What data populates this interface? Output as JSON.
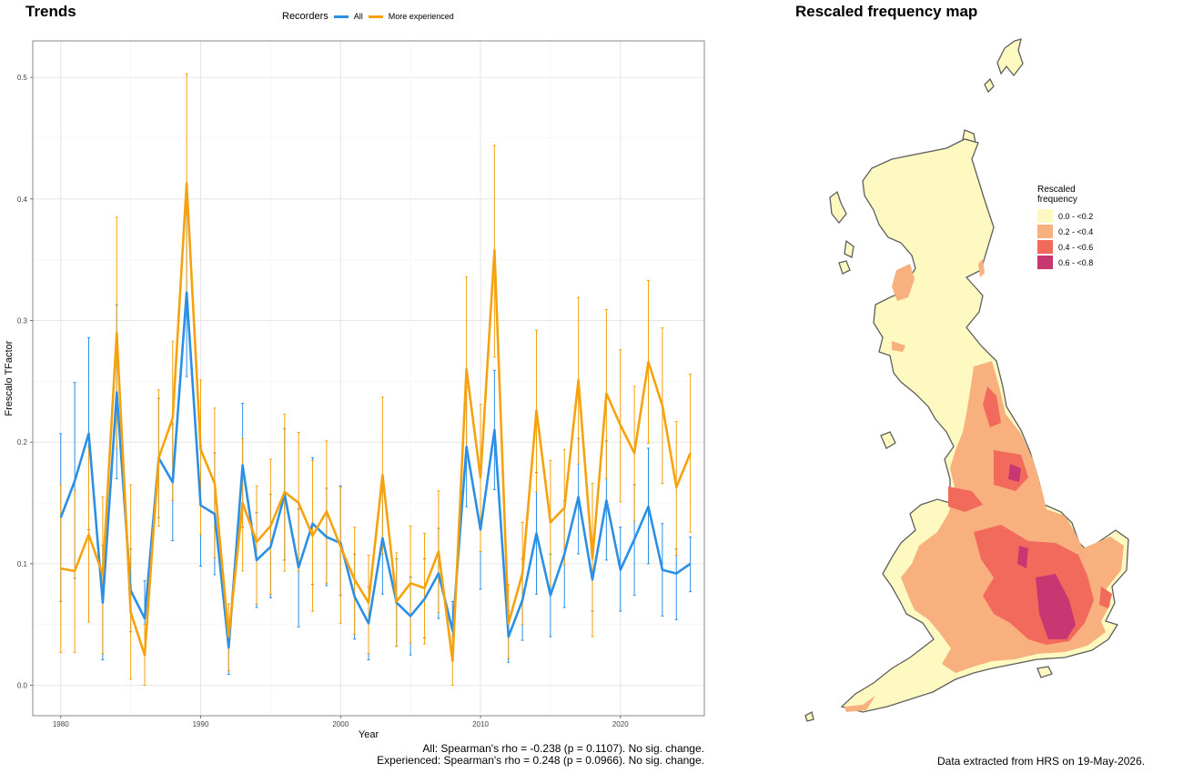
{
  "titles": {
    "trends": "Trends",
    "map": "Rescaled frequency map"
  },
  "legend": {
    "title": "Recorders",
    "items": [
      {
        "label": "All",
        "color": "#2b8fe6"
      },
      {
        "label": "More experienced",
        "color": "#f6a20e"
      }
    ]
  },
  "chart_data": {
    "type": "line",
    "xlabel": "Year",
    "ylabel": "Frescalo TFactor",
    "xlim": [
      1978,
      2026
    ],
    "ylim": [
      -0.025,
      0.53
    ],
    "x_ticks": [
      1980,
      1990,
      2000,
      2010,
      2020
    ],
    "y_ticks": [
      0.0,
      0.1,
      0.2,
      0.3,
      0.4,
      0.5
    ],
    "y_tick_labels": [
      "0.0",
      "0.1",
      "0.2",
      "0.3",
      "0.4",
      "0.5"
    ],
    "grid": true,
    "legend_position": "top",
    "x": [
      1980,
      1981,
      1982,
      1983,
      1984,
      1985,
      1986,
      1987,
      1988,
      1989,
      1990,
      1991,
      1992,
      1993,
      1994,
      1995,
      1996,
      1997,
      1998,
      1999,
      2000,
      2001,
      2002,
      2003,
      2004,
      2005,
      2006,
      2007,
      2008,
      2009,
      2010,
      2011,
      2012,
      2013,
      2014,
      2015,
      2016,
      2017,
      2018,
      2019,
      2020,
      2021,
      2022,
      2023,
      2024,
      2025
    ],
    "series": [
      {
        "name": "All",
        "color": "#2b8fe6",
        "values": [
          0.138,
          0.168,
          0.207,
          0.068,
          0.241,
          0.078,
          0.055,
          0.187,
          0.167,
          0.323,
          0.148,
          0.141,
          0.031,
          0.181,
          0.103,
          0.114,
          0.157,
          0.097,
          0.133,
          0.122,
          0.117,
          0.073,
          0.051,
          0.121,
          0.068,
          0.057,
          0.071,
          0.092,
          0.045,
          0.196,
          0.128,
          0.21,
          0.04,
          0.07,
          0.125,
          0.074,
          0.108,
          0.155,
          0.087,
          0.152,
          0.095,
          0.12,
          0.147,
          0.095,
          0.092,
          0.1
        ],
        "lower": [
          0.069,
          0.088,
          0.128,
          0.021,
          0.17,
          0.044,
          0.025,
          0.138,
          0.119,
          0.254,
          0.098,
          0.091,
          0.009,
          0.13,
          0.064,
          0.072,
          0.103,
          0.048,
          0.083,
          0.082,
          0.074,
          0.038,
          0.021,
          0.075,
          0.032,
          0.025,
          0.039,
          0.055,
          0.021,
          0.147,
          0.079,
          0.161,
          0.019,
          0.037,
          0.075,
          0.04,
          0.064,
          0.108,
          0.061,
          0.103,
          0.061,
          0.074,
          0.1,
          0.057,
          0.054,
          0.077
        ],
        "upper": [
          0.207,
          0.249,
          0.286,
          0.115,
          0.313,
          0.112,
          0.086,
          0.236,
          0.215,
          0.393,
          0.197,
          0.191,
          0.053,
          0.232,
          0.142,
          0.157,
          0.211,
          0.145,
          0.187,
          0.162,
          0.164,
          0.108,
          0.081,
          0.167,
          0.104,
          0.089,
          0.104,
          0.129,
          0.069,
          0.245,
          0.177,
          0.259,
          0.061,
          0.104,
          0.175,
          0.108,
          0.152,
          0.203,
          0.114,
          0.201,
          0.13,
          0.165,
          0.195,
          0.133,
          0.112,
          0.122
        ]
      },
      {
        "name": "More experienced",
        "color": "#f6a20e",
        "values": [
          0.096,
          0.094,
          0.124,
          0.091,
          0.29,
          0.06,
          0.025,
          0.187,
          0.22,
          0.413,
          0.194,
          0.166,
          0.04,
          0.15,
          0.118,
          0.131,
          0.159,
          0.15,
          0.123,
          0.143,
          0.114,
          0.087,
          0.068,
          0.173,
          0.069,
          0.084,
          0.08,
          0.11,
          0.02,
          0.26,
          0.171,
          0.358,
          0.051,
          0.092,
          0.226,
          0.134,
          0.146,
          0.251,
          0.104,
          0.24,
          0.214,
          0.191,
          0.266,
          0.23,
          0.163,
          0.191
        ],
        "lower": [
          0.027,
          0.027,
          0.052,
          0.026,
          0.195,
          0.005,
          0.0,
          0.131,
          0.152,
          0.322,
          0.124,
          0.105,
          0.012,
          0.094,
          0.067,
          0.075,
          0.094,
          0.094,
          0.061,
          0.084,
          0.051,
          0.042,
          0.026,
          0.108,
          0.032,
          0.035,
          0.034,
          0.06,
          0.0,
          0.184,
          0.11,
          0.27,
          0.022,
          0.05,
          0.159,
          0.082,
          0.099,
          0.182,
          0.04,
          0.17,
          0.151,
          0.135,
          0.199,
          0.166,
          0.107,
          0.126
        ],
        "upper": [
          0.165,
          0.16,
          0.196,
          0.155,
          0.385,
          0.165,
          0.05,
          0.243,
          0.283,
          0.503,
          0.251,
          0.228,
          0.067,
          0.203,
          0.164,
          0.186,
          0.223,
          0.208,
          0.185,
          0.201,
          0.163,
          0.13,
          0.107,
          0.237,
          0.109,
          0.131,
          0.125,
          0.16,
          0.04,
          0.336,
          0.231,
          0.444,
          0.083,
          0.134,
          0.292,
          0.185,
          0.194,
          0.319,
          0.166,
          0.309,
          0.276,
          0.246,
          0.333,
          0.294,
          0.217,
          0.256
        ]
      }
    ]
  },
  "stats": {
    "line1": "All: Spearman's rho = -0.238 (p = 0.1107). No sig. change.",
    "line2": "Experienced: Spearman's rho = 0.248 (p = 0.0966). No sig. change."
  },
  "footnote": "Data extracted from HRS on 19-May-2026.",
  "map_legend": {
    "title_line1": "Rescaled",
    "title_line2": "frequency",
    "items": [
      {
        "label": "0.0 - <0.2",
        "color": "#fdf9c0"
      },
      {
        "label": "0.2 - <0.4",
        "color": "#f8b07e"
      },
      {
        "label": "0.4 - <0.6",
        "color": "#f26a5b"
      },
      {
        "label": "0.6 - <0.8",
        "color": "#c83772"
      }
    ]
  }
}
